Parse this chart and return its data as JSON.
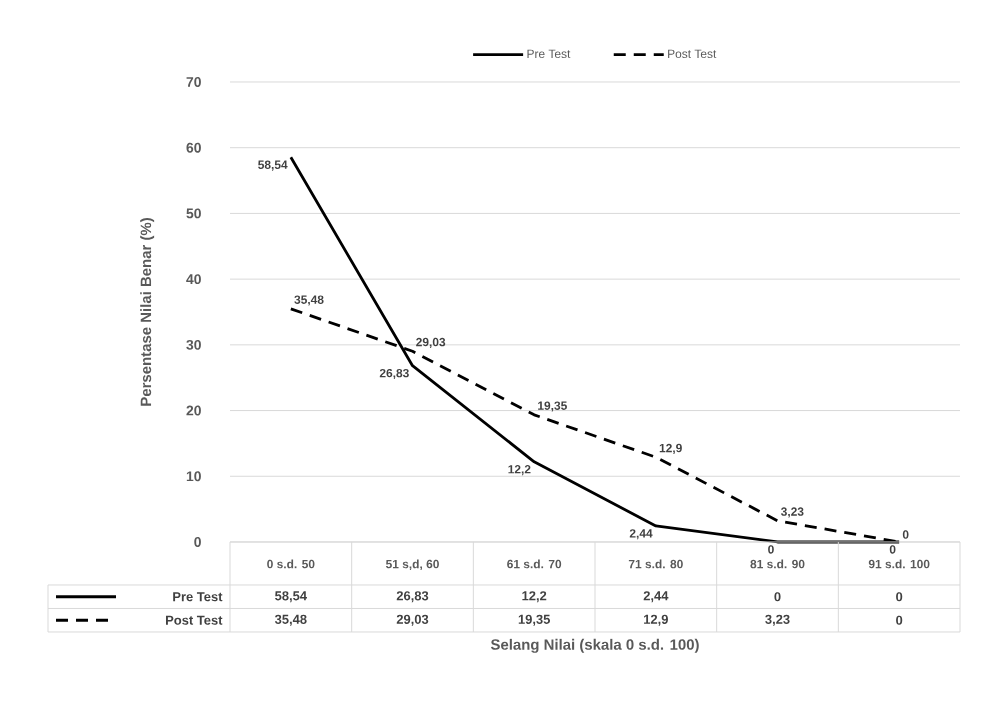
{
  "chart_data": {
    "type": "line",
    "ylabel": "Persentase Nilai  Benar (%)",
    "xlabel": "Selang Nilai (skala 0 s.d. 100)",
    "categories": [
      "0 s.d. 50",
      "51 s,d, 60",
      "61 s.d. 70",
      "71 s.d. 80",
      "81 s.d. 90",
      "91 s.d. 100"
    ],
    "series": [
      {
        "name": "Pre Test",
        "color": "#000000",
        "line_style": "solid",
        "values": [
          58.54,
          26.83,
          12.2,
          2.44,
          0,
          0
        ],
        "value_labels": [
          "58,54",
          "26,83",
          "12,2",
          "2,44",
          "0",
          "0"
        ]
      },
      {
        "name": "Post Test",
        "color": "#000000",
        "line_style": "dashed",
        "values": [
          35.48,
          29.03,
          19.35,
          12.9,
          3.23,
          0
        ],
        "value_labels": [
          "35,48",
          "29,03",
          "19,35",
          "12,9",
          "3,23",
          "0"
        ]
      }
    ],
    "ylim": [
      0,
      70
    ],
    "yticks": [
      0,
      10,
      20,
      30,
      40,
      50,
      60,
      70
    ],
    "grid": "y",
    "legend": "top"
  }
}
